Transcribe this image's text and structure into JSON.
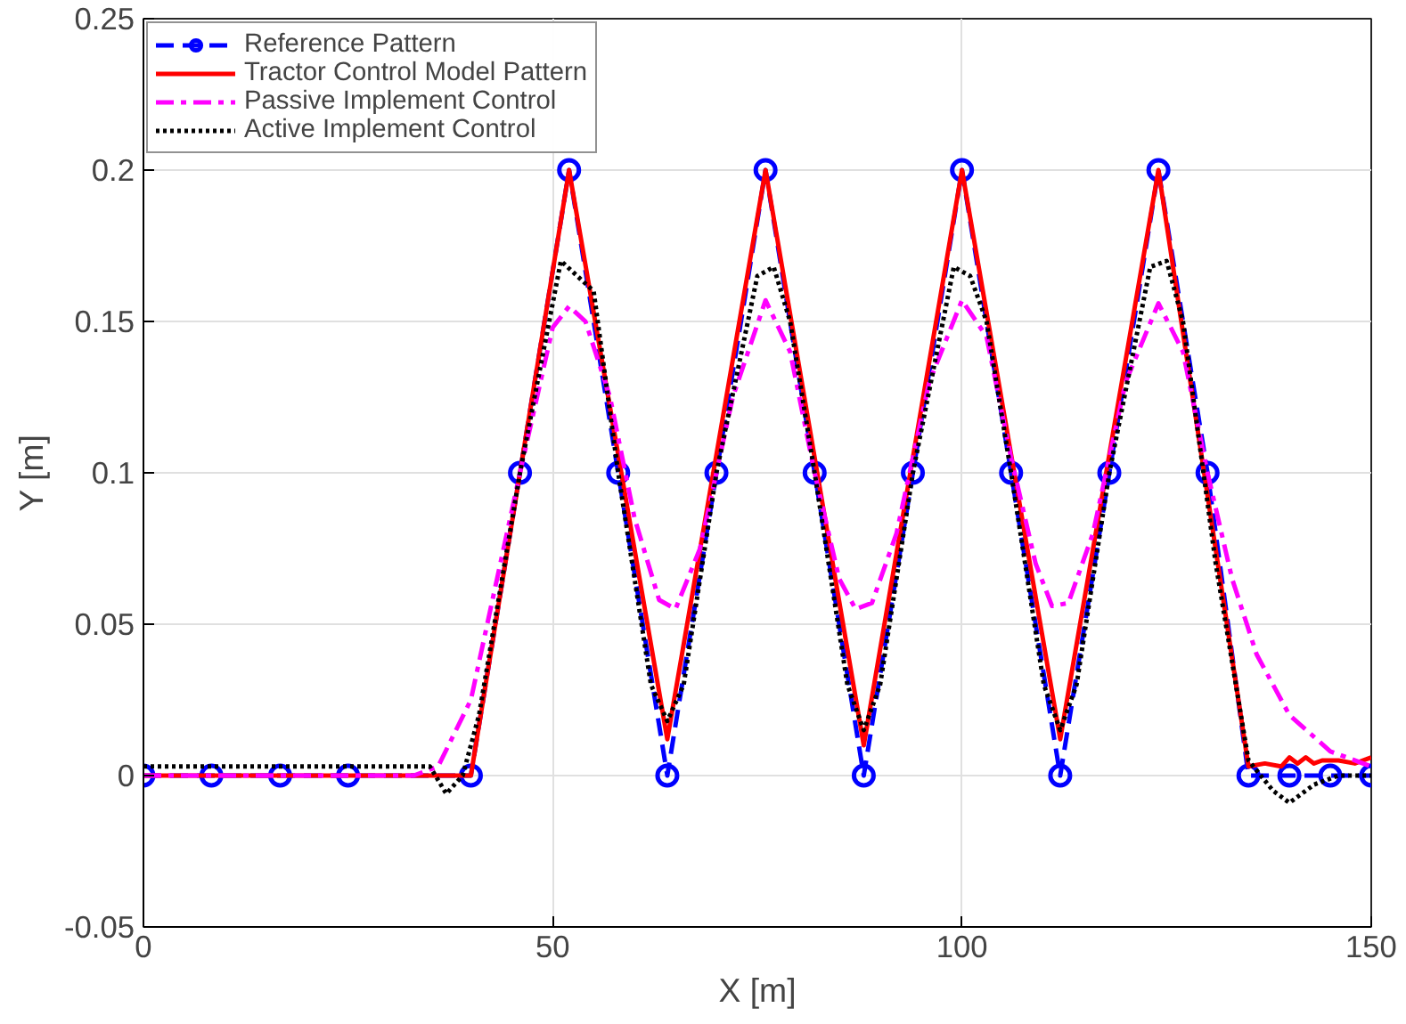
{
  "chart_data": {
    "type": "line",
    "xlabel": "X [m]",
    "ylabel": "Y [m]",
    "xlim": [
      0,
      150
    ],
    "ylim": [
      -0.05,
      0.25
    ],
    "xticks": [
      0,
      50,
      100,
      150
    ],
    "yticks": [
      -0.05,
      0,
      0.05,
      0.1,
      0.15,
      0.2,
      0.25
    ],
    "grid": true,
    "legend": "top left",
    "series": [
      {
        "name": "Reference Pattern",
        "color": "#0000ff",
        "line_style": "dashed",
        "marker": "circle",
        "x": [
          0,
          8.3,
          16.7,
          25,
          40,
          46,
          52,
          58,
          64,
          70,
          76,
          82,
          88,
          94,
          100,
          106,
          112,
          118,
          124,
          130,
          135,
          140,
          145,
          150
        ],
        "values": [
          0,
          0,
          0,
          0,
          0,
          0.1,
          0.2,
          0.1,
          0,
          0.1,
          0.2,
          0.1,
          0,
          0.1,
          0.2,
          0.1,
          0,
          0.1,
          0.2,
          0.1,
          0,
          0,
          0,
          0
        ]
      },
      {
        "name": "Tractor Control Model Pattern",
        "color": "#ff0000",
        "line_style": "solid",
        "marker": "none",
        "x": [
          0,
          40,
          52,
          64,
          76,
          88,
          100,
          112,
          124,
          135,
          137,
          139,
          140,
          141,
          142,
          143,
          144,
          146,
          148,
          150
        ],
        "values": [
          0,
          0,
          0.2,
          0.012,
          0.2,
          0.01,
          0.2,
          0.012,
          0.2,
          0.003,
          0.004,
          0.003,
          0.006,
          0.004,
          0.006,
          0.004,
          0.005,
          0.005,
          0.004,
          0.006
        ]
      },
      {
        "name": "Passive Implement Control",
        "color": "#ff00ff",
        "line_style": "dashdot",
        "marker": "none",
        "x": [
          0,
          33,
          36,
          40,
          46,
          50,
          52,
          54,
          57,
          60,
          63,
          65,
          68,
          72,
          76,
          79,
          82,
          85,
          87,
          89,
          92,
          96,
          100,
          103,
          106,
          109,
          111,
          113,
          116,
          120,
          124,
          127,
          130,
          133,
          136,
          140,
          145,
          150
        ],
        "values": [
          0,
          0,
          0.003,
          0.025,
          0.1,
          0.148,
          0.155,
          0.15,
          0.125,
          0.085,
          0.058,
          0.055,
          0.075,
          0.125,
          0.157,
          0.14,
          0.1,
          0.065,
          0.055,
          0.057,
          0.08,
          0.13,
          0.157,
          0.145,
          0.105,
          0.07,
          0.056,
          0.057,
          0.08,
          0.13,
          0.156,
          0.14,
          0.1,
          0.065,
          0.04,
          0.02,
          0.008,
          0.003
        ]
      },
      {
        "name": "Active Implement Control",
        "color": "#000000",
        "line_style": "dotted",
        "marker": "none",
        "x": [
          0,
          35,
          37,
          39,
          41,
          46,
          51,
          53,
          55,
          58,
          62,
          64,
          66,
          70,
          75,
          77,
          79,
          82,
          86,
          88,
          90,
          94,
          99,
          101,
          103,
          106,
          110,
          112,
          114,
          118,
          123,
          125,
          127,
          131,
          135,
          138,
          140,
          143,
          146,
          150
        ],
        "values": [
          0.003,
          0.003,
          -0.006,
          0,
          0.02,
          0.1,
          0.17,
          0.165,
          0.16,
          0.1,
          0.03,
          0.018,
          0.03,
          0.1,
          0.165,
          0.168,
          0.15,
          0.1,
          0.03,
          0.015,
          0.03,
          0.1,
          0.168,
          0.165,
          0.15,
          0.1,
          0.03,
          0.015,
          0.03,
          0.1,
          0.168,
          0.17,
          0.15,
          0.07,
          0.005,
          -0.005,
          -0.009,
          -0.003,
          0,
          0
        ]
      }
    ]
  }
}
